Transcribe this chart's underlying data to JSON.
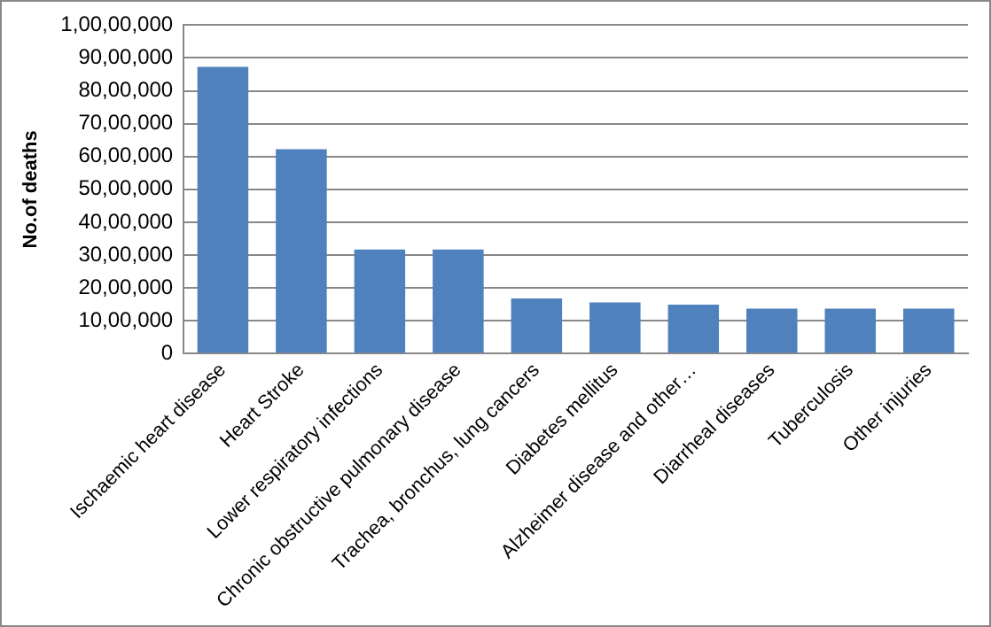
{
  "chart_data": {
    "type": "bar",
    "ylabel": "No.of deaths",
    "categories": [
      "Ischaemic heart disease",
      "Heart Stroke",
      "Lower respiratory infections",
      "Chronic obstructive pulmonary disease",
      "Trachea, bronchus, lung cancers",
      "Diabetes mellitus",
      "Alzheimer disease and other…",
      "Diarrheal diseases",
      "Tuberculosis",
      "Other injuries"
    ],
    "values": [
      8730000,
      6220000,
      3170000,
      3170000,
      1680000,
      1560000,
      1490000,
      1370000,
      1370000,
      1370000
    ],
    "color": "#4f81bd",
    "ylim": [
      0,
      10000000
    ],
    "yticks": [
      0,
      {
        "value": 1000000,
        "label": "10,00,000"
      },
      {
        "value": 2000000,
        "label": "20,00,000"
      },
      {
        "value": 3000000,
        "label": "30,00,000"
      },
      {
        "value": 4000000,
        "label": "40,00,000"
      },
      {
        "value": 5000000,
        "label": "50,00,000"
      },
      {
        "value": 6000000,
        "label": "60,00,000"
      },
      {
        "value": 7000000,
        "label": "70,00,000"
      },
      {
        "value": 8000000,
        "label": "80,00,000"
      },
      {
        "value": 9000000,
        "label": "90,00,000"
      },
      {
        "value": 10000000,
        "label": "1,00,00,000"
      }
    ],
    "grid": "y",
    "legend": false
  }
}
